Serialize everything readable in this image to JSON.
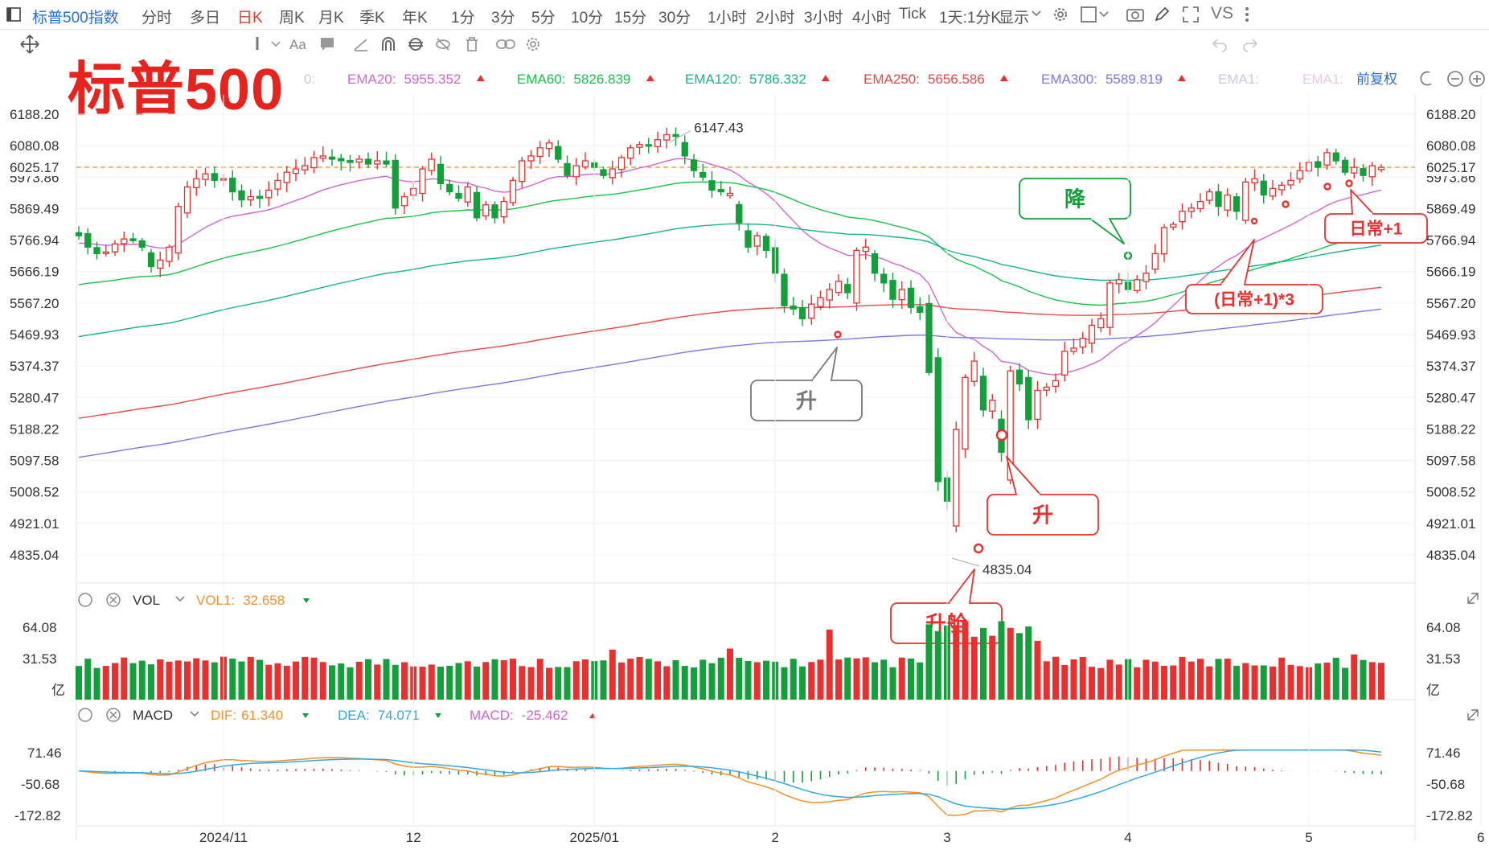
{
  "toolbar": {
    "title": "标普500指数",
    "periods": [
      "分时",
      "多日",
      "日K",
      "周K",
      "月K",
      "季K",
      "年K",
      "1分",
      "3分",
      "5分",
      "10分",
      "15分",
      "30分",
      "1小时",
      "2小时",
      "3小时",
      "4小时",
      "Tick",
      "1天:1分K"
    ],
    "active_period": "日K",
    "display_label": "显示",
    "vs_label": "VS"
  },
  "big_title": "标普500",
  "ema_legend": [
    {
      "label": "EMA20:",
      "value": "5955.352",
      "color": "#d166d1"
    },
    {
      "label": "EMA60:",
      "value": "5826.839",
      "color": "#19c24a"
    },
    {
      "label": "EMA120:",
      "value": "5786.332",
      "color": "#18b38a"
    },
    {
      "label": "EMA250:",
      "value": "5656.586",
      "color": "#e84a4a"
    },
    {
      "label": "EMA300:",
      "value": "5589.819",
      "color": "#7a7ae6"
    },
    {
      "label": "EMA1:",
      "value": "",
      "color": "#c9c9e6"
    },
    {
      "label": "EMA1:",
      "value": "",
      "color": "#e6c9e6"
    }
  ],
  "ema_prefix": "0:",
  "adjust_label": "前复权",
  "colors": {
    "up": "#e8312f",
    "down": "#13a03b",
    "ema20": "#d166d1",
    "ema60": "#19c24a",
    "ema120": "#18b38a",
    "ema250": "#e84a4a",
    "ema300": "#7a7ae6",
    "dif": "#f0912b",
    "dea": "#33a8e0"
  },
  "price_axis_ticks": [
    "6188.20",
    "6080.08",
    "5973.86",
    "5869.49",
    "5766.94",
    "5666.19",
    "5567.20",
    "5469.93",
    "5374.37",
    "5280.47",
    "5188.22",
    "5097.58",
    "5008.52",
    "4921.01",
    "4835.04"
  ],
  "current_price": "6025.17",
  "high_label": "6147.43",
  "low_label": "4835.04",
  "annotations": {
    "down": "降",
    "up1": "升",
    "up2": "升",
    "cabin": "升舱",
    "daily3": "(日常+1)*3",
    "daily1": "日常+1"
  },
  "vol_legend": {
    "name": "VOL",
    "label": "VOL1:",
    "value": "32.658"
  },
  "vol_axis": [
    "64.08",
    "31.53",
    "亿"
  ],
  "macd_legend": {
    "name": "MACD",
    "dif_label": "DIF:",
    "dif": "61.340",
    "dea_label": "DEA:",
    "dea": "74.071",
    "macd_label": "MACD:",
    "macd": "-25.462"
  },
  "macd_axis": [
    "71.46",
    "-50.68",
    "-172.82"
  ],
  "date_axis": [
    "2024/11",
    "12",
    "2025/01",
    "2",
    "3",
    "4",
    "5",
    "6"
  ],
  "chart_data": {
    "type": "candlestick",
    "title": "标普500",
    "ylim": [
      4835.04,
      6188.2
    ],
    "highlights": {
      "high": 6147.43,
      "low": 4835.04,
      "last": 6025.17
    },
    "ema": {
      "EMA20": 5955.352,
      "EMA60": 5826.839,
      "EMA120": 5786.332,
      "EMA250": 5656.586,
      "EMA300": 5589.819
    },
    "volume_last": 32.658,
    "macd": {
      "DIF": 61.34,
      "DEA": 74.071,
      "MACD": -25.462
    },
    "months": [
      "2024/11",
      "12",
      "2025/01",
      "2",
      "3",
      "4",
      "5",
      "6"
    ],
    "closes": [
      5815,
      5780,
      5760,
      5765,
      5790,
      5805,
      5800,
      5780,
      5720,
      5740,
      5780,
      5905,
      5965,
      5990,
      6005,
      5985,
      5990,
      5950,
      5925,
      5935,
      5930,
      5955,
      5985,
      6010,
      6020,
      6030,
      6055,
      6060,
      6050,
      6045,
      6040,
      6050,
      6035,
      6045,
      6035,
      5900,
      5935,
      5960,
      6020,
      6050,
      5975,
      5950,
      5930,
      5965,
      5870,
      5910,
      5870,
      5920,
      5985,
      6045,
      6060,
      6085,
      6100,
      6050,
      6000,
      6030,
      6045,
      6025,
      6000,
      6020,
      6055,
      6085,
      6095,
      6090,
      6110,
      6125,
      6120,
      6060,
      6015,
      5995,
      5955,
      5950,
      5945,
      5855,
      5780,
      5815,
      5770,
      5700,
      5600,
      5590,
      5560,
      5605,
      5625,
      5650,
      5675,
      5640,
      5770,
      5780,
      5700,
      5670,
      5620,
      5650,
      5595,
      5580,
      5395,
      5060,
      5000,
      5220,
      5380,
      5430,
      5280,
      5310,
      5150,
      5400,
      5360,
      5250,
      5340,
      5350,
      5370,
      5460,
      5470,
      5500,
      5540,
      5560,
      5670,
      5680,
      5650,
      5680,
      5700,
      5760,
      5840,
      5850,
      5890,
      5900,
      5920,
      5950,
      5905,
      5940,
      5890,
      5980,
      5990,
      5940,
      5960,
      5970,
      5985,
      6015,
      6040,
      6025,
      6070,
      6045,
      6010,
      6025,
      6000,
      6030,
      6025
    ]
  }
}
